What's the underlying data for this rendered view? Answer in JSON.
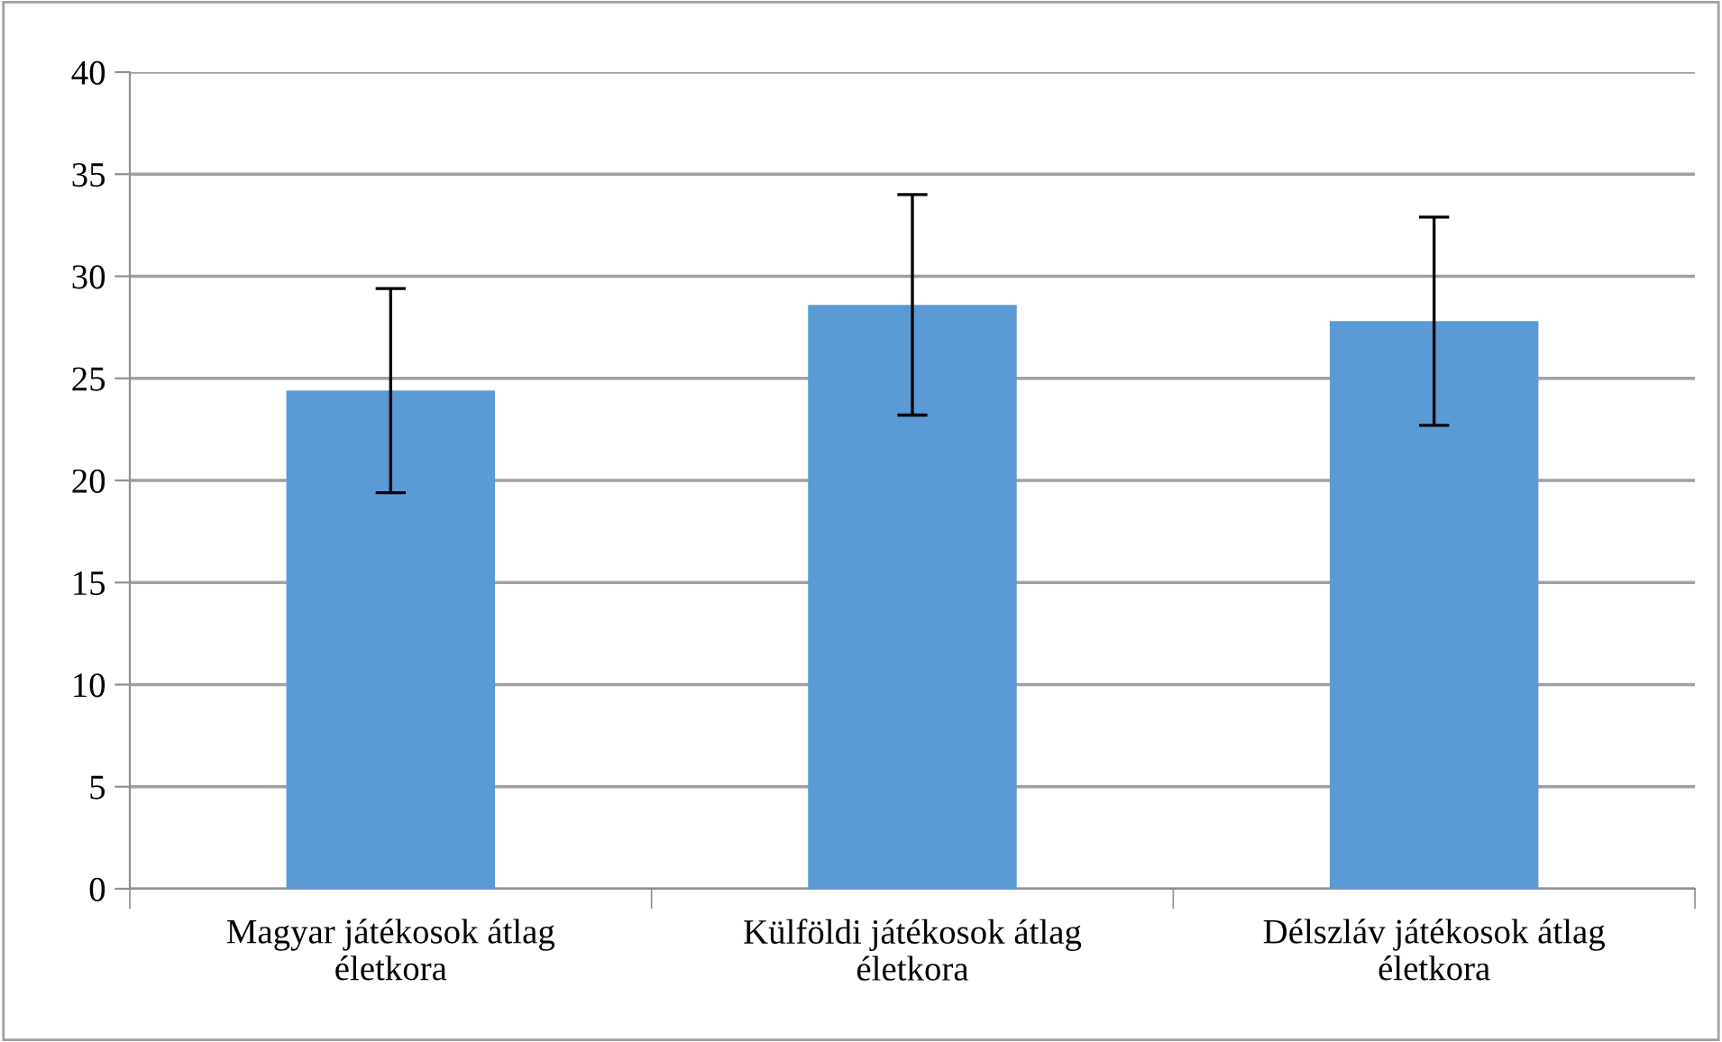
{
  "chart_data": {
    "type": "bar",
    "categories": [
      "Magyar játékosok átlag\néletkora",
      "Külföldi játékosok átlag\néletkora",
      "Délszláv játékosok átlag\néletkora"
    ],
    "values": [
      24.4,
      28.6,
      27.8
    ],
    "errors": [
      5.0,
      5.4,
      5.1
    ],
    "color": "#5b9bd5",
    "ylim": [
      0,
      40
    ],
    "yticks": [
      0,
      5,
      10,
      15,
      20,
      25,
      30,
      35,
      40
    ],
    "grid": "y",
    "legend": false
  }
}
